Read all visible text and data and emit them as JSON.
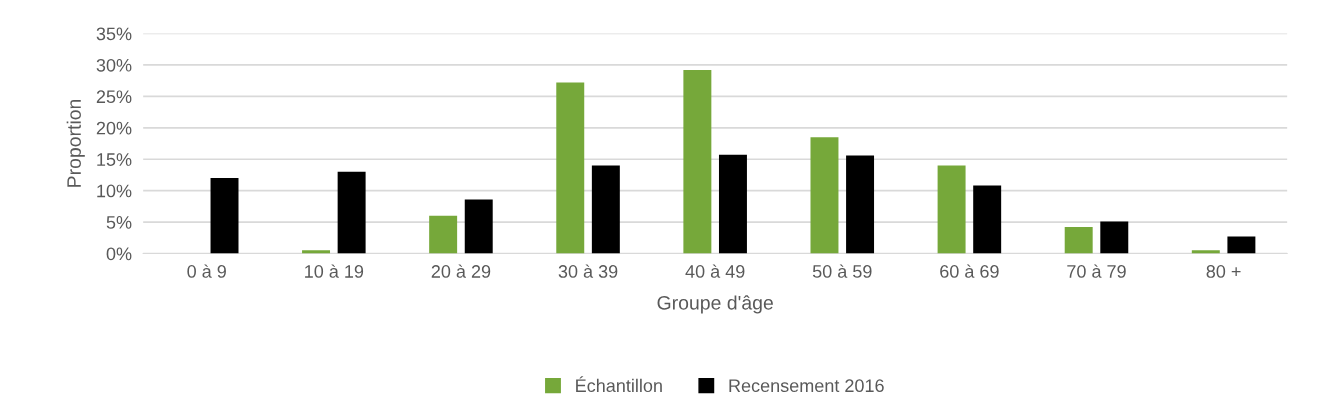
{
  "chart_data": {
    "type": "bar",
    "xlabel": "Groupe d'âge",
    "ylabel": "Proportion",
    "categories": [
      "0 à 9",
      "10 à 19",
      "20 à 29",
      "30 à 39",
      "40 à 49",
      "50 à 59",
      "60 à 69",
      "70 à 79",
      "80 +"
    ],
    "series": [
      {
        "name": "Échantillon",
        "color": "#76a83a",
        "values": [
          0,
          0.5,
          6,
          27.2,
          29.2,
          18.5,
          14,
          4.2,
          0.5
        ]
      },
      {
        "name": "Recensement 2016",
        "color": "#000000",
        "values": [
          12,
          13,
          8.6,
          14,
          15.7,
          15.6,
          10.8,
          5.1,
          2.7
        ]
      }
    ],
    "ylim": [
      0,
      35
    ],
    "yticks": [
      {
        "value": 0,
        "label": "0%"
      },
      {
        "value": 5,
        "label": "5%"
      },
      {
        "value": 10,
        "label": "10%"
      },
      {
        "value": 15,
        "label": "15%"
      },
      {
        "value": 20,
        "label": "20%"
      },
      {
        "value": 25,
        "label": "25%"
      },
      {
        "value": 30,
        "label": "30%"
      },
      {
        "value": 35,
        "label": "35%"
      }
    ],
    "grid": "y",
    "legend": "bottom"
  }
}
